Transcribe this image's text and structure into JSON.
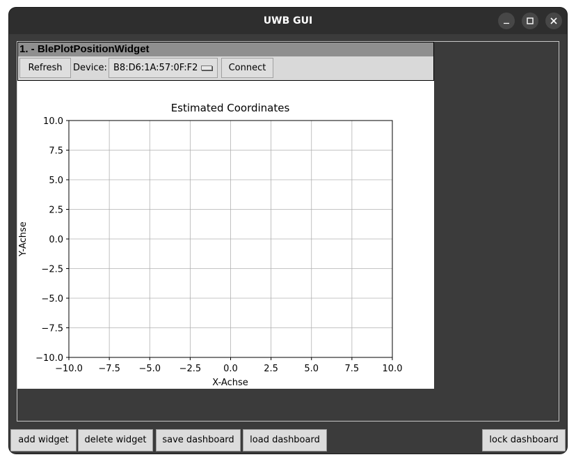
{
  "window": {
    "title": "UWB GUI",
    "controls": [
      "minimize-icon",
      "maximize-icon",
      "close-icon"
    ]
  },
  "widget": {
    "header": "1. - BlePlotPositionWidget",
    "toolbar": {
      "refresh_label": "Refresh",
      "device_label": "Device:",
      "device_value": "B8:D6:1A:57:0F:F2",
      "connect_label": "Connect"
    }
  },
  "chart_data": {
    "type": "scatter",
    "title": "Estimated Coordinates",
    "xlabel": "X-Achse",
    "ylabel": "Y-Achse",
    "xlim": [
      -10.0,
      10.0
    ],
    "ylim": [
      -10.0,
      10.0
    ],
    "xticks": [
      "−10.0",
      "−7.5",
      "−5.0",
      "−2.5",
      "0.0",
      "2.5",
      "5.0",
      "7.5",
      "10.0"
    ],
    "yticks": [
      "10.0",
      "7.5",
      "5.0",
      "2.5",
      "0.0",
      "−2.5",
      "−5.0",
      "−7.5",
      "−10.0"
    ],
    "grid": true,
    "series": []
  },
  "bottombar": {
    "add_widget": "add widget",
    "delete_widget": "delete widget",
    "save_dashboard": "save dashboard",
    "load_dashboard": "load dashboard",
    "lock_dashboard": "lock dashboard"
  }
}
